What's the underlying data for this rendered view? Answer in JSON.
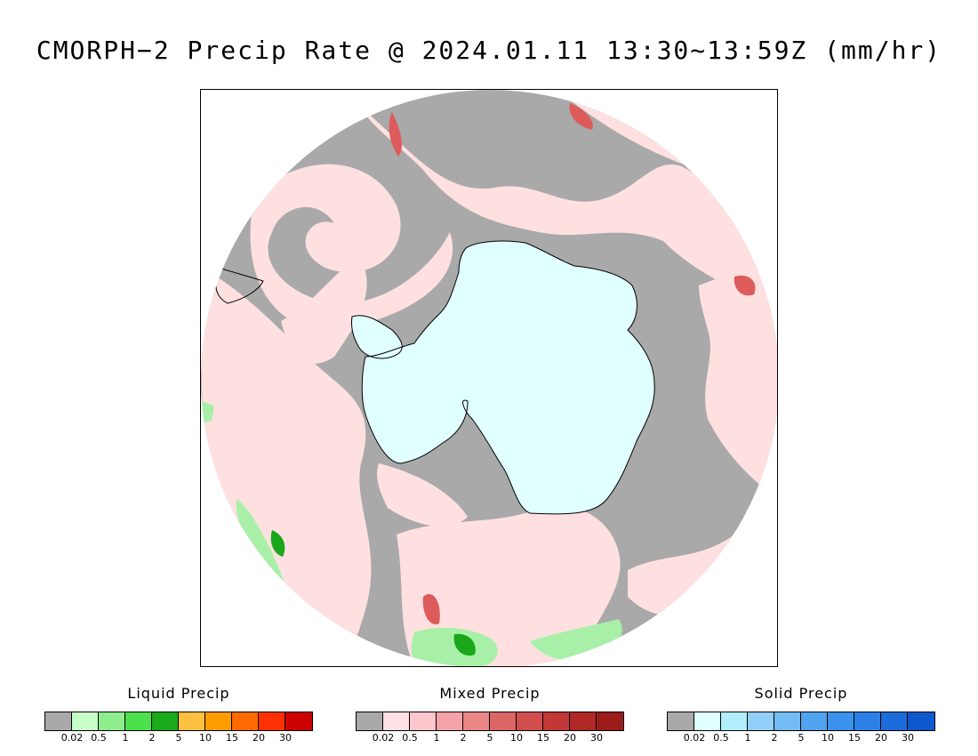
{
  "title": "CMORPH−2 Precip Rate @ 2024.01.11 13:30~13:59Z (mm/hr)",
  "map": {
    "projection": "south-polar-stereographic",
    "colors": {
      "no_precip": "#a9a9a9",
      "ice_sheet": "#e0ffff",
      "light_mixed": "#ffe0e0",
      "mixed": "#f4a7a7",
      "heavy_mixed": "#dd5b5b",
      "light_liquid": "#a8f0a8",
      "liquid": "#4ee04e",
      "heavy_liquid": "#1aa81a",
      "coastline": "#000000"
    }
  },
  "legends": [
    {
      "title": "Liquid Precip",
      "colors": [
        "#a9a9a9",
        "#c8ffc8",
        "#8eee8e",
        "#4ce04c",
        "#1aaa1a",
        "#ffc040",
        "#ff9c00",
        "#ff6a00",
        "#ff3000",
        "#cc0000"
      ],
      "ticks": [
        "0.02",
        "0.5",
        "1",
        "2",
        "5",
        "10",
        "15",
        "20",
        "30"
      ]
    },
    {
      "title": "Mixed Precip",
      "colors": [
        "#a9a9a9",
        "#ffe0e6",
        "#ffc6cc",
        "#f4a4a8",
        "#ea8686",
        "#dc6666",
        "#d04e4e",
        "#c23838",
        "#b02828",
        "#9c1c1c"
      ],
      "ticks": [
        "0.02",
        "0.5",
        "1",
        "2",
        "5",
        "10",
        "15",
        "20",
        "30"
      ]
    },
    {
      "title": "Solid Precip",
      "colors": [
        "#a9a9a9",
        "#e0ffff",
        "#b0eefc",
        "#92d0f8",
        "#74bcf4",
        "#50a4ef",
        "#3a92ec",
        "#2c80e8",
        "#1c6cdc",
        "#0c58cc"
      ],
      "ticks": [
        "0.02",
        "0.5",
        "1",
        "2",
        "5",
        "10",
        "15",
        "20",
        "30"
      ]
    }
  ]
}
